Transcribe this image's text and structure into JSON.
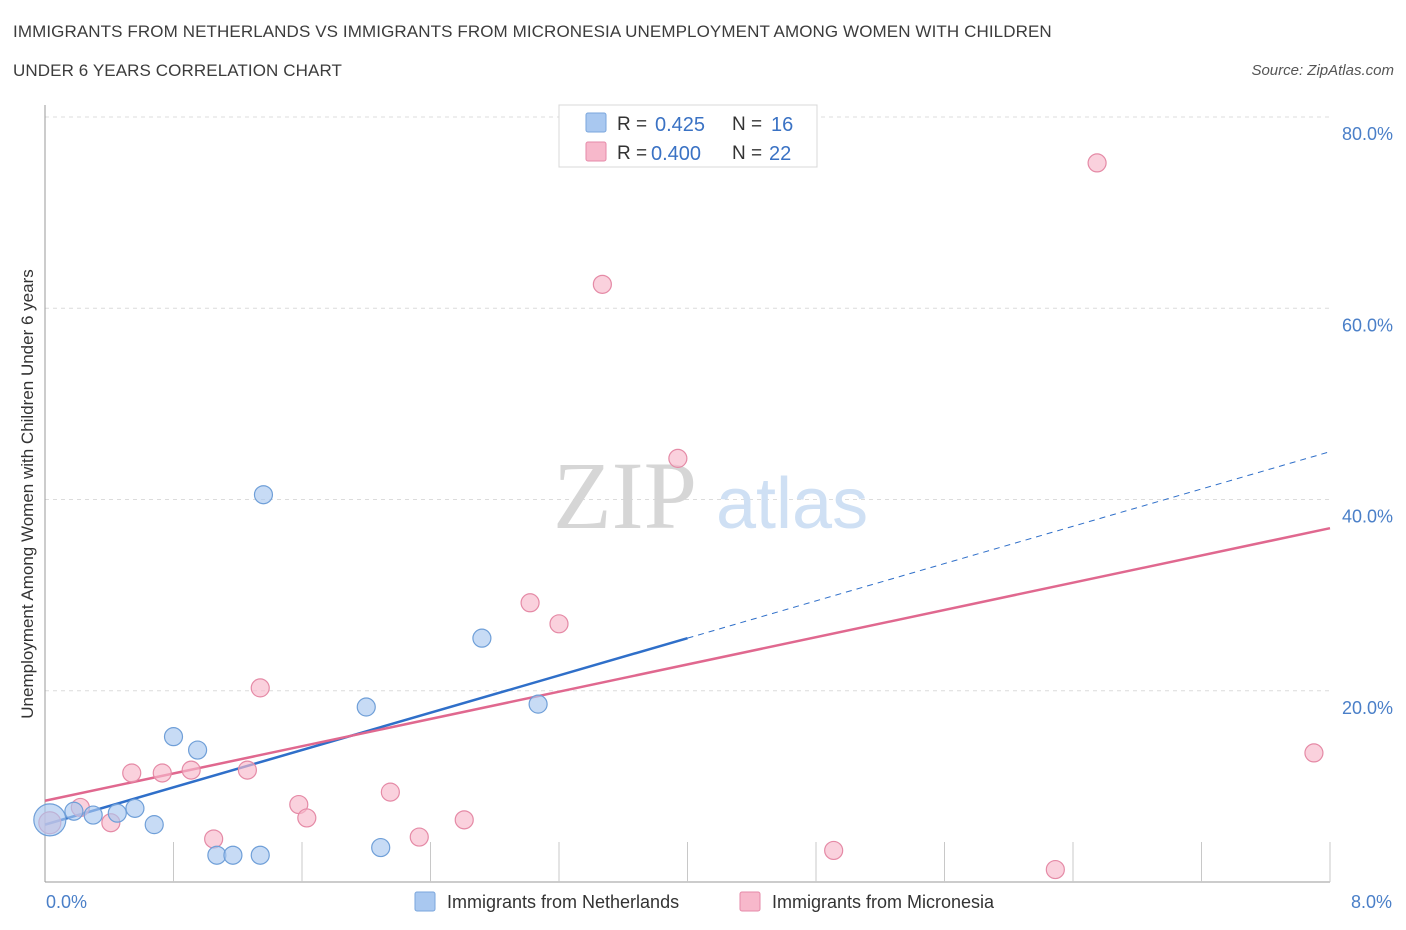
{
  "title_line_1": "IMMIGRANTS FROM NETHERLANDS VS IMMIGRANTS FROM MICRONESIA UNEMPLOYMENT AMONG WOMEN WITH CHILDREN",
  "title_line_2": "UNDER 6 YEARS CORRELATION CHART",
  "source": "Source: ZipAtlas.com",
  "watermark": {
    "zip": "ZIP",
    "atlas": "atlas"
  },
  "legend": {
    "r_label": "R =",
    "n_label": "N =",
    "rows": [
      {
        "r": "0.425",
        "n": "16",
        "color": "#a9c8f0",
        "stroke": "#7aa6dc"
      },
      {
        "r": "0.400",
        "n": "22",
        "color": "#f7b8cb",
        "stroke": "#e68aa8"
      }
    ]
  },
  "chart_data": {
    "type": "scatter",
    "ylabel": "Unemployment Among Women with Children Under 6 years",
    "xlim": [
      0,
      8
    ],
    "ylim": [
      0,
      80
    ],
    "x_tick_labels": [
      "0.0%",
      "8.0%"
    ],
    "y_tick_values": [
      20,
      40,
      60,
      80
    ],
    "y_tick_labels": [
      "20.0%",
      "40.0%",
      "60.0%",
      "80.0%"
    ],
    "grid": true,
    "legend_placement": "bottom-center",
    "series": [
      {
        "name": "Immigrants from Netherlands",
        "color": "#a9c8f0",
        "stroke": "#6f9fd8",
        "trend_color": "#2f6fc9",
        "trend": {
          "x0": 0.0,
          "y0": 6.0,
          "x1": 4.0,
          "y1": 25.5,
          "dash_to_x": 8.0,
          "dash_to_y": 45.0
        },
        "points": [
          [
            0.03,
            6.5,
            16
          ],
          [
            0.18,
            7.4,
            9
          ],
          [
            0.3,
            7.0,
            9
          ],
          [
            0.45,
            7.2,
            9
          ],
          [
            0.56,
            7.7,
            9
          ],
          [
            0.68,
            6.0,
            9
          ],
          [
            0.8,
            15.2,
            9
          ],
          [
            0.95,
            13.8,
            9
          ],
          [
            1.07,
            2.8,
            9
          ],
          [
            1.17,
            2.8,
            9
          ],
          [
            1.34,
            2.8,
            9
          ],
          [
            1.36,
            40.5,
            9
          ],
          [
            2.0,
            18.3,
            9
          ],
          [
            2.09,
            3.6,
            9
          ],
          [
            2.72,
            25.5,
            9
          ],
          [
            3.07,
            18.6,
            9
          ]
        ]
      },
      {
        "name": "Immigrants from Micronesia",
        "color": "#f7b8cb",
        "stroke": "#e58aa6",
        "trend_color": "#e0688f",
        "trend": {
          "x0": 0.0,
          "y0": 8.5,
          "x1": 8.0,
          "y1": 37.0
        },
        "points": [
          [
            0.03,
            6.2,
            11
          ],
          [
            0.22,
            7.8,
            9
          ],
          [
            0.41,
            6.2,
            9
          ],
          [
            0.54,
            11.4,
            9
          ],
          [
            0.73,
            11.4,
            9
          ],
          [
            0.91,
            11.7,
            9
          ],
          [
            1.05,
            4.5,
            9
          ],
          [
            1.26,
            11.7,
            9
          ],
          [
            1.34,
            20.3,
            9
          ],
          [
            1.58,
            8.1,
            9
          ],
          [
            1.63,
            6.7,
            9
          ],
          [
            2.15,
            9.4,
            9
          ],
          [
            2.33,
            4.7,
            9
          ],
          [
            2.61,
            6.5,
            9
          ],
          [
            3.02,
            29.2,
            9
          ],
          [
            3.2,
            27.0,
            9
          ],
          [
            3.47,
            62.5,
            9
          ],
          [
            3.94,
            44.3,
            9
          ],
          [
            4.91,
            3.3,
            9
          ],
          [
            6.29,
            1.3,
            9
          ],
          [
            6.55,
            75.2,
            9
          ],
          [
            7.9,
            13.5,
            9
          ]
        ]
      }
    ]
  }
}
